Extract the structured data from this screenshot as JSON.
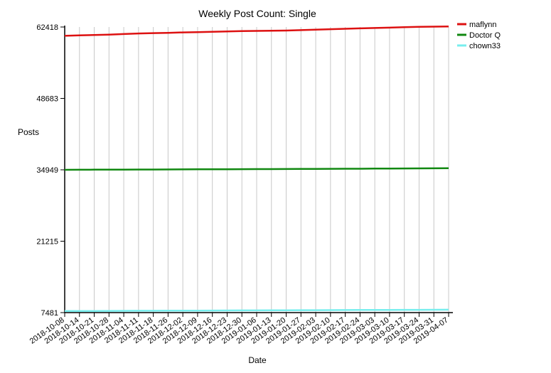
{
  "chart_data": {
    "type": "line",
    "title": "Weekly Post Count: Single",
    "xlabel": "Date",
    "ylabel": "Posts",
    "x": [
      "2018-10-08",
      "2018-10-14",
      "2018-10-21",
      "2018-10-28",
      "2018-11-04",
      "2018-11-11",
      "2018-11-18",
      "2018-11-26",
      "2018-12-02",
      "2018-12-09",
      "2018-12-16",
      "2018-12-23",
      "2018-12-30",
      "2019-01-06",
      "2019-01-13",
      "2019-01-20",
      "2019-01-27",
      "2019-02-03",
      "2019-02-10",
      "2019-02-17",
      "2019-02-24",
      "2019-03-03",
      "2019-03-10",
      "2019-03-17",
      "2019-03-24",
      "2019-03-31",
      "2019-04-07"
    ],
    "y_ticks": [
      7481,
      21215,
      34949,
      48683,
      62418
    ],
    "ylim": [
      7481,
      62418
    ],
    "grid": "vertical",
    "legend_position": "top-right",
    "series": [
      {
        "name": "maflynn",
        "color": "#dd1111",
        "values": [
          60720,
          60800,
          60880,
          60960,
          61060,
          61180,
          61240,
          61300,
          61380,
          61440,
          61500,
          61560,
          61620,
          61660,
          61700,
          61740,
          61820,
          61900,
          62000,
          62080,
          62160,
          62230,
          62300,
          62380,
          62440,
          62480,
          62520
        ]
      },
      {
        "name": "Doctor Q",
        "color": "#118811",
        "values": [
          34950,
          34960,
          34970,
          34980,
          34990,
          35000,
          35010,
          35020,
          35030,
          35040,
          35050,
          35060,
          35070,
          35080,
          35090,
          35100,
          35110,
          35120,
          35140,
          35150,
          35160,
          35180,
          35190,
          35210,
          35220,
          35240,
          35270
        ]
      },
      {
        "name": "chown33",
        "color": "#77eeee",
        "values": [
          7780,
          7790,
          7800,
          7810,
          7820,
          7830,
          7840,
          7850,
          7860,
          7870,
          7880,
          7890,
          7900,
          7910,
          7920,
          7930,
          7940,
          7950,
          7960,
          7970,
          7980,
          7990,
          8000,
          8010,
          8020,
          8030,
          8040
        ]
      }
    ]
  }
}
